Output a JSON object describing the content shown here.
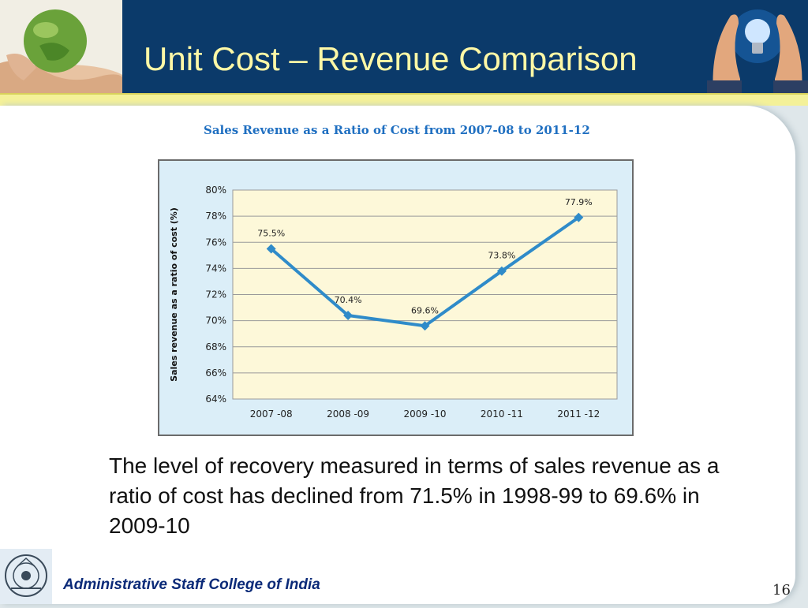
{
  "header": {
    "title": "Unit Cost – Revenue Comparison",
    "left_image": "hands-holding-globe-image",
    "right_image": "hands-around-lightbulb-image",
    "colors": {
      "band": "#0b3a6a",
      "title": "#fff8a6",
      "stripe": "#f4f199"
    }
  },
  "chart_data": {
    "type": "line",
    "title": "Sales Revenue as a Ratio of Cost from 2007-08 to 2011-12",
    "xlabel": "",
    "ylabel": "Sales revenue as a ratio of cost (%)",
    "categories": [
      "2007 -08",
      "2008 -09",
      "2009 -10",
      "2010 -11",
      "2011 -12"
    ],
    "series": [
      {
        "values": [
          75.5,
          70.4,
          69.6,
          73.8,
          77.9
        ],
        "color": "#2f8bc9"
      }
    ],
    "data_labels": [
      "75.5%",
      "70.4%",
      "69.6%",
      "73.8%",
      "77.9%"
    ],
    "ylim": [
      64,
      80
    ],
    "yticks": [
      64,
      66,
      68,
      70,
      72,
      74,
      76,
      78,
      80
    ],
    "ytick_labels": [
      "64%",
      "66%",
      "68%",
      "70%",
      "72%",
      "74%",
      "76%",
      "78%",
      "80%"
    ],
    "grid": true,
    "legend": "none",
    "plot_background": "#fdf8d9",
    "chart_background": "#dbeef8"
  },
  "body": {
    "text": "The level of recovery measured in terms of sales revenue as a ratio of cost has declined from 71.5% in 1998-99 to 69.6% in 2009-10"
  },
  "footer": {
    "institution": "Administrative Staff College of India",
    "logo": "asci-emblem-logo",
    "slide_number": "16"
  }
}
